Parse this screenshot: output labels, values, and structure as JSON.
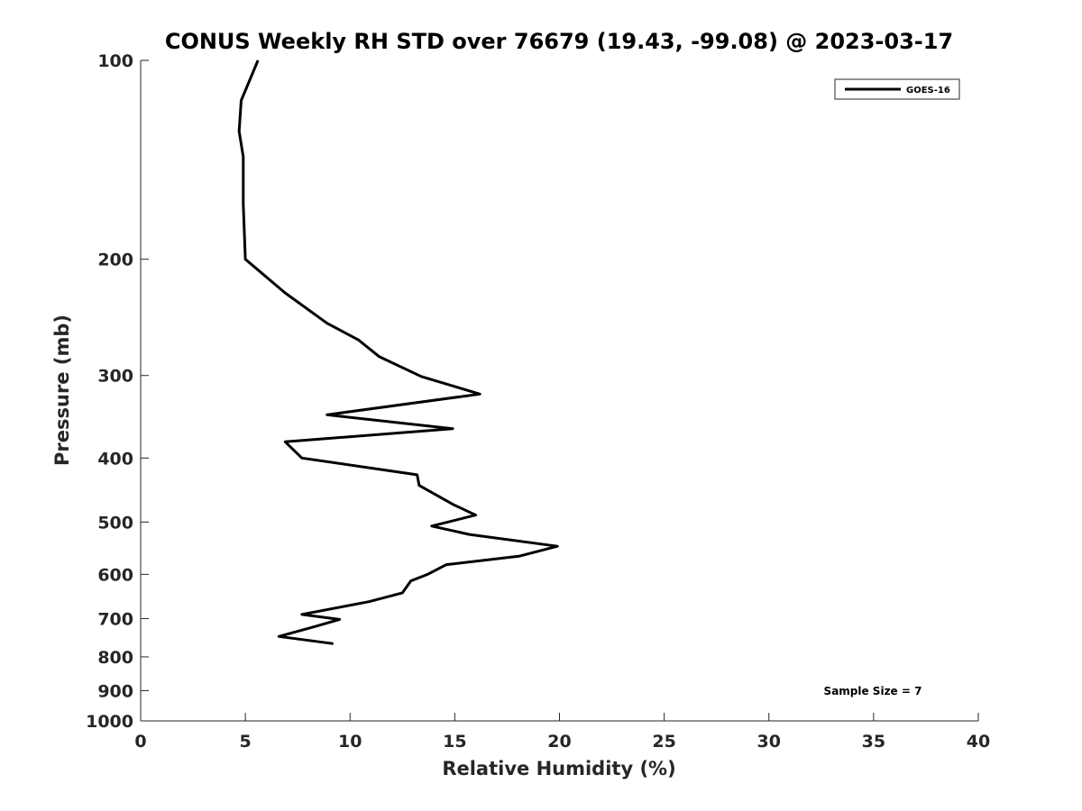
{
  "chart_data": {
    "type": "line",
    "title": "CONUS Weekly RH STD over 76679 (19.43, -99.08) @ 2023-03-17",
    "xlabel": "Relative Humidity (%)",
    "ylabel": "Pressure (mb)",
    "xlim": [
      0,
      40
    ],
    "ylim": [
      100,
      1000
    ],
    "yscale": "log",
    "y_reversed": true,
    "grid": false,
    "x_ticks": [
      "0",
      "5",
      "10",
      "15",
      "20",
      "25",
      "30",
      "35",
      "40"
    ],
    "y_ticks": [
      "100",
      "200",
      "300",
      "400",
      "500",
      "600",
      "700",
      "800",
      "900",
      "1000"
    ],
    "legend": {
      "position": "top-right",
      "entries": [
        "GOES-16"
      ]
    },
    "annotation": "Sample Size = 7",
    "series": [
      {
        "name": "GOES-16",
        "color": "#000000",
        "x": [
          5.6,
          4.8,
          4.7,
          4.9,
          4.9,
          4.9,
          5.0,
          6.9,
          8.9,
          10.4,
          11.4,
          13.4,
          16.2,
          8.9,
          14.9,
          6.9,
          7.7,
          13.2,
          13.3,
          14.9,
          16.0,
          13.9,
          15.7,
          19.9,
          18.1,
          14.6,
          13.7,
          12.9,
          12.5,
          10.9,
          7.7,
          9.5,
          8.3,
          6.6,
          9.2
        ],
        "y": [
          100,
          115,
          128,
          140,
          150,
          165,
          200,
          225,
          250,
          265,
          281,
          301,
          320,
          344,
          361,
          378,
          400,
          424,
          440,
          470,
          488,
          507,
          522,
          544,
          563,
          580,
          600,
          614,
          640,
          660,
          690,
          702,
          720,
          745,
          764
        ]
      }
    ]
  }
}
